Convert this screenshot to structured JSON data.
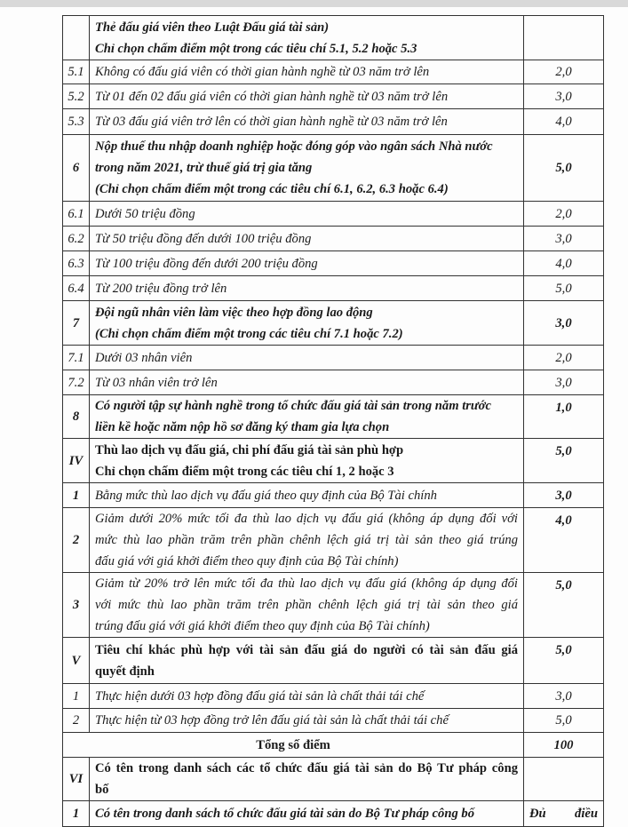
{
  "rows": [
    {
      "num": "",
      "lines": [
        "Thẻ đấu giá viên theo Luật Đấu giá tài sản)",
        "Chỉ chọn chấm điểm một trong các tiêu chí 5.1, 5.2 hoặc 5.3"
      ],
      "score": ""
    },
    {
      "num": "5.1",
      "lines": [
        "Không có đấu giá viên có thời gian hành nghề từ 03 năm trở lên"
      ],
      "score": "2,0"
    },
    {
      "num": "5.2",
      "lines": [
        "Từ 01 đến 02 đấu giá viên có thời gian hành nghề từ 03 năm trở lên"
      ],
      "score": "3,0"
    },
    {
      "num": "5.3",
      "lines": [
        "Từ 03 đấu giá viên trở lên có thời gian hành nghề từ 03 năm trở lên"
      ],
      "score": "4,0"
    },
    {
      "num": "6",
      "lines": [
        "Nộp thuế thu nhập doanh nghiệp hoặc đóng góp vào ngân sách Nhà nước",
        "trong năm 2021, trừ thuế giá trị gia tăng",
        "(Chỉ chọn chấm điểm một trong các tiêu chí 6.1, 6.2, 6.3 hoặc 6.4)"
      ],
      "score": "5,0"
    },
    {
      "num": "6.1",
      "lines": [
        "Dưới 50 triệu đồng"
      ],
      "score": "2,0"
    },
    {
      "num": "6.2",
      "lines": [
        "Từ 50 triệu đồng đến dưới 100 triệu đồng"
      ],
      "score": "3,0"
    },
    {
      "num": "6.3",
      "lines": [
        "Từ 100 triệu đồng đến dưới 200 triệu đồng"
      ],
      "score": "4,0"
    },
    {
      "num": "6.4",
      "lines": [
        "Từ 200 triệu đồng trở lên"
      ],
      "score": "5,0"
    },
    {
      "num": "7",
      "lines": [
        "Đội ngũ nhân viên làm việc theo hợp đồng lao động",
        "(Chỉ chọn chấm điểm một trong các tiêu chí 7.1 hoặc 7.2)"
      ],
      "score": "3,0"
    },
    {
      "num": "7.1",
      "lines": [
        "Dưới 03 nhân viên"
      ],
      "score": "2,0"
    },
    {
      "num": "7.2",
      "lines": [
        "Từ 03 nhân viên trở lên"
      ],
      "score": "3,0"
    },
    {
      "num": "8",
      "lines": [
        "Có người tập sự hành nghề trong tổ chức đấu giá tài sản trong năm trước",
        "liền kề hoặc năm nộp hồ sơ đăng ký tham gia lựa chọn"
      ],
      "score": "1,0"
    },
    {
      "num": "IV",
      "lines": [
        "Thù lao dịch vụ đấu giá, chi phí đấu giá tài sản phù hợp",
        "Chỉ chọn chấm điểm một trong các tiêu chí 1, 2 hoặc 3"
      ],
      "score": "5,0"
    },
    {
      "num": "1",
      "lines": [
        "Bằng mức thù lao dịch vụ đấu giá theo quy định của Bộ Tài chính"
      ],
      "score": "3,0"
    },
    {
      "num": "2",
      "lines": [
        "Giảm dưới 20% mức tối đa thù lao dịch vụ đấu giá (không áp dụng đối với",
        "mức thù lao phần trăm trên phần chênh lệch giá trị tài sản theo giá trúng",
        "đấu giá với giá khởi điểm theo quy định của Bộ Tài chính)"
      ],
      "score": "4,0"
    },
    {
      "num": "3",
      "lines": [
        "Giảm từ 20% trở lên mức tối đa thù lao dịch vụ đấu giá (không áp dụng đối",
        "với mức thù lao phần trăm trên phần chênh lệch giá trị tài sản theo giá",
        "trúng đấu giá với giá khởi điểm theo quy định của Bộ Tài chính)"
      ],
      "score": "5,0"
    },
    {
      "num": "V",
      "lines": [
        "Tiêu chí khác phù hợp với tài sản đấu giá do người có tài sản đấu giá",
        "quyết định"
      ],
      "score": "5,0"
    },
    {
      "num": "1",
      "lines": [
        "Thực hiện dưới 03 hợp đồng đấu giá tài sản là chất thải tái chế"
      ],
      "score": "3,0"
    },
    {
      "num": "2",
      "lines": [
        "Thực hiện từ 03 hợp đồng trở lên đấu giá tài sản là chất thải tái chế"
      ],
      "score": "5,0"
    },
    {
      "num": "",
      "lines": [
        "Tổng số điểm"
      ],
      "score": "100"
    },
    {
      "num": "VI",
      "lines": [
        "Có tên trong danh sách các tổ chức đấu giá tài sản do Bộ Tư pháp công",
        "bố"
      ],
      "score": ""
    },
    {
      "num": "1",
      "lines": [
        "Có tên trong danh sách tổ chức đấu giá tài sản do Bộ Tư pháp công bố"
      ],
      "score": "Đủ điều"
    }
  ]
}
